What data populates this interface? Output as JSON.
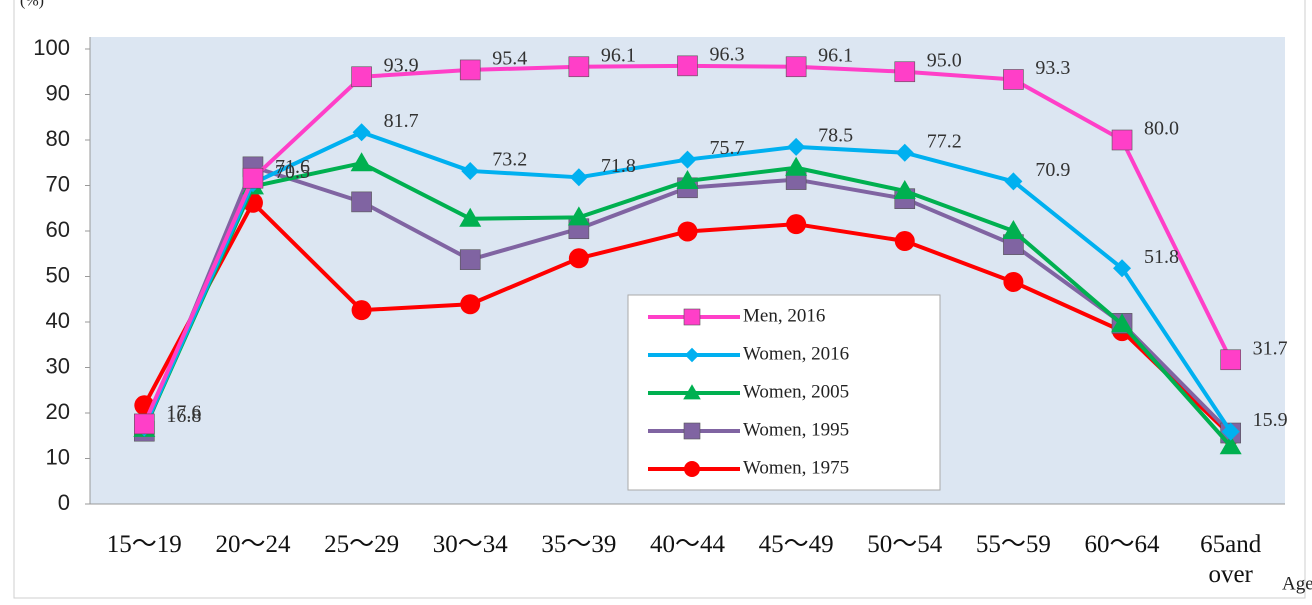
{
  "chart_data": {
    "type": "line",
    "y_unit": "(%)",
    "x_label": "Age",
    "categories": [
      "15～19",
      "20～24",
      "25～29",
      "30～34",
      "35～39",
      "40～44",
      "45～49",
      "50～54",
      "55～59",
      "60～64",
      "65and over"
    ],
    "ylim": [
      0,
      100
    ],
    "yticks": [
      0,
      10,
      20,
      30,
      40,
      50,
      60,
      70,
      80,
      90,
      100
    ],
    "grid": false,
    "background": "#dce6f2",
    "legend": "lower center",
    "series": [
      {
        "name": "Men, 2016",
        "color": "#ff3fc8",
        "marker": "square",
        "values": [
          17.6,
          71.6,
          93.9,
          95.4,
          96.1,
          96.3,
          96.1,
          95.0,
          93.3,
          80.0,
          31.7
        ],
        "value_labels": [
          "17.6",
          "71.6",
          "93.9",
          "95.4",
          "96.1",
          "96.3",
          "96.1",
          "95.0",
          "93.3",
          "80.0",
          "31.7"
        ]
      },
      {
        "name": "Women, 2016",
        "color": "#00b0f0",
        "marker": "diamond",
        "values": [
          16.8,
          70.5,
          81.7,
          73.2,
          71.8,
          75.7,
          78.5,
          77.2,
          70.9,
          51.8,
          15.9
        ],
        "value_labels": [
          "16.8",
          "70.5",
          "81.7",
          "73.2",
          "71.8",
          "75.7",
          "78.5",
          "77.2",
          "70.9",
          "51.8",
          "15.9"
        ]
      },
      {
        "name": "Women, 2005",
        "color": "#00b050",
        "marker": "triangle",
        "values": [
          16.5,
          69.8,
          74.9,
          62.7,
          63.0,
          71.0,
          73.9,
          68.8,
          60.0,
          39.5,
          12.7
        ]
      },
      {
        "name": "Women, 1995",
        "color": "#8064a2",
        "marker": "square",
        "values": [
          16.0,
          74.1,
          66.4,
          53.7,
          60.5,
          69.5,
          71.3,
          67.1,
          57.0,
          39.7,
          15.6
        ]
      },
      {
        "name": "Women, 1975",
        "color": "#ff0000",
        "marker": "circle",
        "values": [
          21.7,
          66.2,
          42.6,
          43.9,
          54.0,
          59.9,
          61.5,
          57.8,
          48.8,
          38.0,
          15.1
        ]
      }
    ]
  }
}
